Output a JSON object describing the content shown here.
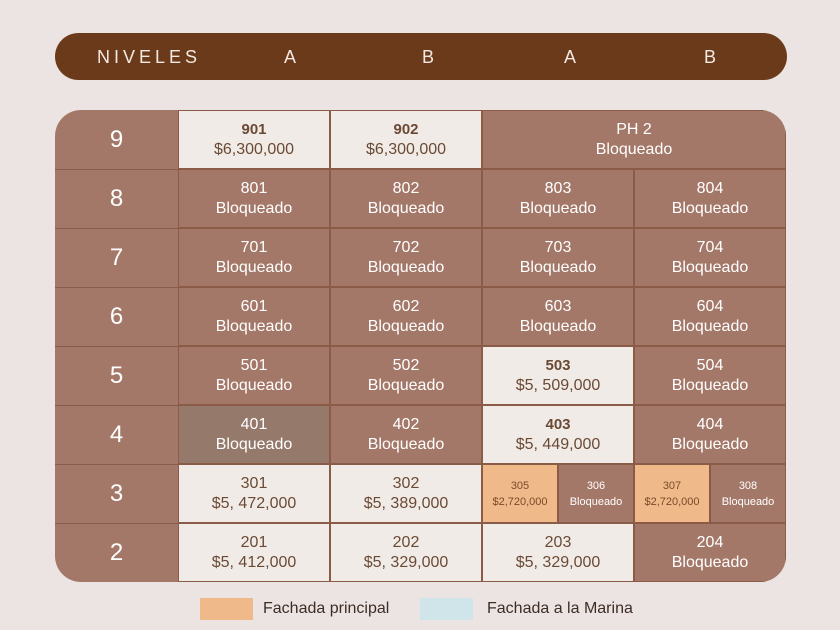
{
  "header": {
    "niveles": "NIVELES",
    "columns": [
      "A",
      "B",
      "A",
      "B"
    ]
  },
  "levels": [
    "9",
    "8",
    "7",
    "6",
    "5",
    "4",
    "3",
    "2"
  ],
  "units": {
    "901": {
      "num": "901",
      "status": "$6,300,000"
    },
    "902": {
      "num": "902",
      "status": "$6,300,000"
    },
    "ph2": {
      "num": "PH 2",
      "status": "Bloqueado"
    },
    "801": {
      "num": "801",
      "status": "Bloqueado"
    },
    "802": {
      "num": "802",
      "status": "Bloqueado"
    },
    "803": {
      "num": "803",
      "status": "Bloqueado"
    },
    "804": {
      "num": "804",
      "status": "Bloqueado"
    },
    "701": {
      "num": "701",
      "status": "Bloqueado"
    },
    "702": {
      "num": "702",
      "status": "Bloqueado"
    },
    "703": {
      "num": "703",
      "status": "Bloqueado"
    },
    "704": {
      "num": "704",
      "status": "Bloqueado"
    },
    "601": {
      "num": "601",
      "status": "Bloqueado"
    },
    "602": {
      "num": "602",
      "status": "Bloqueado"
    },
    "603": {
      "num": "603",
      "status": "Bloqueado"
    },
    "604": {
      "num": "604",
      "status": "Bloqueado"
    },
    "501": {
      "num": "501",
      "status": "Bloqueado"
    },
    "502": {
      "num": "502",
      "status": "Bloqueado"
    },
    "503": {
      "num": "503",
      "status": "$5, 509,000"
    },
    "504": {
      "num": "504",
      "status": "Bloqueado"
    },
    "401": {
      "num": "401",
      "status": "Bloqueado"
    },
    "402": {
      "num": "402",
      "status": "Bloqueado"
    },
    "403": {
      "num": "403",
      "status": "$5, 449,000"
    },
    "404": {
      "num": "404",
      "status": "Bloqueado"
    },
    "301": {
      "num": "301",
      "status": "$5, 472,000"
    },
    "302": {
      "num": "302",
      "status": "$5, 389,000"
    },
    "305": {
      "num": "305",
      "status": "$2,720,000"
    },
    "306": {
      "num": "306",
      "status": "Bloqueado"
    },
    "307": {
      "num": "307",
      "status": "$2,720,000"
    },
    "308": {
      "num": "308",
      "status": "Bloqueado"
    },
    "201": {
      "num": "201",
      "status": "$5, 412,000"
    },
    "202": {
      "num": "202",
      "status": "$5, 329,000"
    },
    "203": {
      "num": "203",
      "status": "$5, 329,000"
    },
    "204": {
      "num": "204",
      "status": "Bloqueado"
    }
  },
  "legend": [
    {
      "label": "Fachada principal",
      "color": "#efb98a"
    },
    {
      "label": "Fachada a la Marina",
      "color": "#cfe5ea"
    }
  ],
  "colors": {
    "header": "#6b3a1a",
    "blocked": "#a47868",
    "available": "#f1ebe8"
  }
}
